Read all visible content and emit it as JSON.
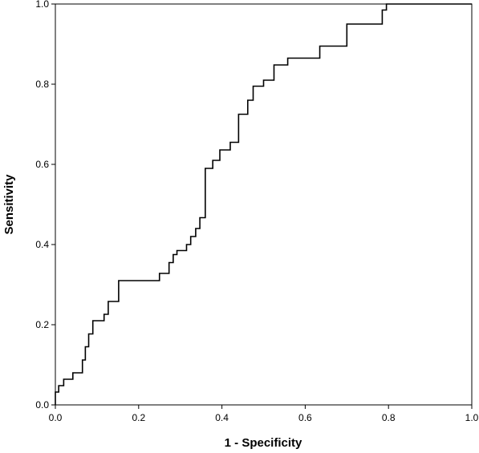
{
  "chart_data": {
    "type": "line",
    "title": "",
    "xlabel": "1 - Specificity",
    "ylabel": "Sensitivity",
    "xlim": [
      0.0,
      1.0
    ],
    "ylim": [
      0.0,
      1.0
    ],
    "xticks": [
      "0.0",
      "0.2",
      "0.4",
      "0.6",
      "0.8",
      "1.0"
    ],
    "yticks": [
      "0.0",
      "0.2",
      "0.4",
      "0.6",
      "0.8",
      "1.0"
    ],
    "grid": false,
    "legend": "none",
    "line_color": "#000000",
    "series": [
      {
        "x": [
          0.0,
          0.0,
          0.008,
          0.008,
          0.02,
          0.02,
          0.042,
          0.042,
          0.065,
          0.065,
          0.072,
          0.072,
          0.08,
          0.08,
          0.09,
          0.09,
          0.117,
          0.117,
          0.127,
          0.127,
          0.152,
          0.152,
          0.25,
          0.25,
          0.273,
          0.273,
          0.283,
          0.283,
          0.292,
          0.292,
          0.315,
          0.315,
          0.325,
          0.325,
          0.337,
          0.337,
          0.347,
          0.347,
          0.36,
          0.36,
          0.378,
          0.378,
          0.395,
          0.395,
          0.42,
          0.42,
          0.44,
          0.44,
          0.462,
          0.462,
          0.475,
          0.475,
          0.5,
          0.5,
          0.525,
          0.525,
          0.558,
          0.558,
          0.635,
          0.635,
          0.7,
          0.7,
          0.785,
          0.785,
          0.795,
          0.795,
          0.85,
          0.85,
          0.923,
          0.923,
          0.94,
          0.94,
          0.955,
          0.955,
          1.0
        ],
        "y": [
          0.0,
          0.032,
          0.032,
          0.048,
          0.048,
          0.064,
          0.064,
          0.08,
          0.08,
          0.112,
          0.112,
          0.145,
          0.145,
          0.177,
          0.177,
          0.21,
          0.21,
          0.226,
          0.226,
          0.258,
          0.258,
          0.31,
          0.31,
          0.328,
          0.328,
          0.355,
          0.355,
          0.375,
          0.375,
          0.385,
          0.385,
          0.4,
          0.4,
          0.42,
          0.42,
          0.44,
          0.44,
          0.467,
          0.467,
          0.59,
          0.59,
          0.61,
          0.61,
          0.636,
          0.636,
          0.655,
          0.655,
          0.725,
          0.725,
          0.76,
          0.76,
          0.795,
          0.795,
          0.81,
          0.81,
          0.848,
          0.848,
          0.865,
          0.865,
          0.895,
          0.895,
          0.95,
          0.95,
          0.985,
          0.985,
          1.0,
          1.0,
          1.0,
          1.0,
          1.0,
          1.0,
          1.0,
          1.0,
          1.0,
          1.0
        ]
      }
    ]
  }
}
